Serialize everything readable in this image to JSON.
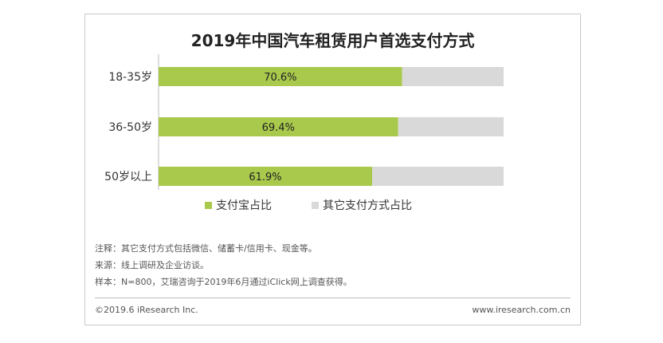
{
  "chart_data": {
    "type": "bar",
    "orientation": "horizontal",
    "stacked": true,
    "title": "2019年中国汽车租赁用户首选支付方式",
    "categories": [
      "18-35岁",
      "36-50岁",
      "50岁以上"
    ],
    "series": [
      {
        "name": "支付宝占比",
        "values": [
          70.6,
          69.4,
          61.9
        ],
        "labels": [
          "70.6%",
          "69.4%",
          "61.9%"
        ],
        "color": "#a8c94c"
      },
      {
        "name": "其它支付方式占比",
        "values": [
          29.4,
          30.6,
          38.1
        ],
        "color": "#d9d9d9"
      }
    ],
    "xlim": [
      0,
      100
    ],
    "grid": false,
    "legend": "bottom"
  },
  "notes": {
    "note": "注释：其它支付方式包括微信、储蓄卡/信用卡、现金等。",
    "source": "来源：线上调研及企业访谈。",
    "sample": "样本：N=800，艾瑞咨询于2019年6月通过iClick网上调查获得。"
  },
  "footer": {
    "copyright": "©2019.6 iResearch Inc.",
    "website": "www.iresearch.com.cn"
  }
}
